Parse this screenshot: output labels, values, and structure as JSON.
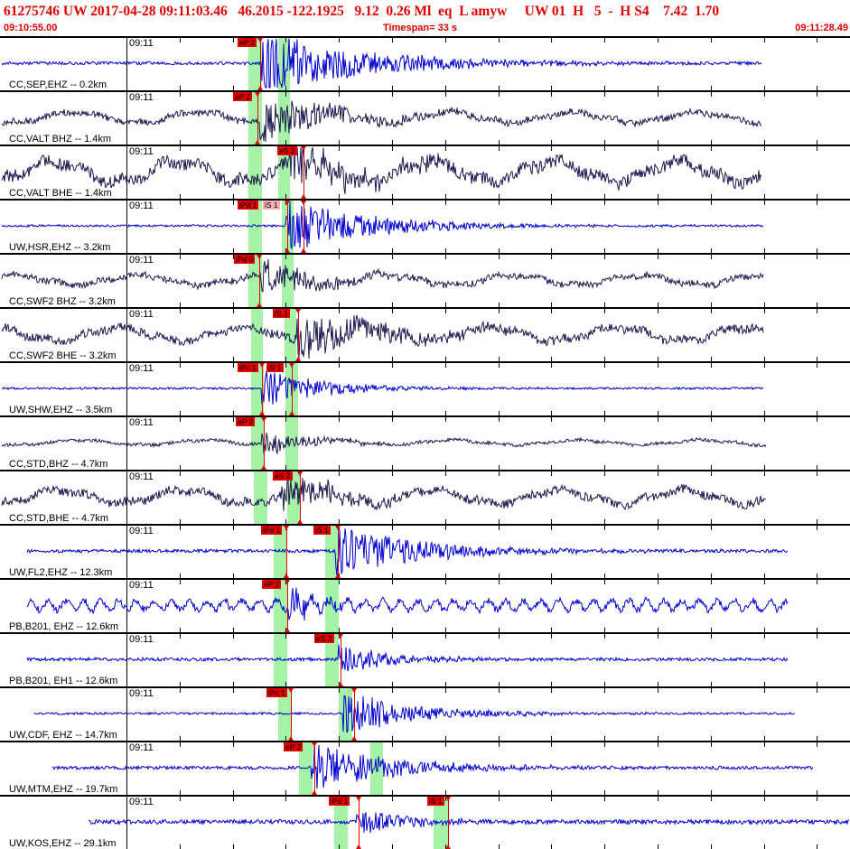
{
  "header": {
    "event_line": "61275746 UW 2017-04-28 09:11:03.46   46.2015 -122.1925   9.12  0.26 Ml  eq  L amyw     UW 01  H   5  -  H S4    7.42  1.70",
    "start_time": "09:10:55.00",
    "timespan": "Timespan=  33 s",
    "end_time": "09:11:28.49"
  },
  "colors": {
    "title_red": "#e00000",
    "trace_blue": "#0000d0",
    "trace_dark": "#1a1a50",
    "phase_green": "#a6f2a6",
    "pick_red": "#e00000"
  },
  "traces": [
    {
      "time_label": "09:11",
      "station": "CC,SEP,EHZ -- 0.2km",
      "color": "blue",
      "picks": [
        {
          "label": "eP 2",
          "style": "dark"
        }
      ]
    },
    {
      "time_label": "09:11",
      "station": "CC,VALT BHZ -- 1.4km",
      "color": "dark",
      "picks": [
        {
          "label": "eP 2",
          "style": "dark"
        }
      ]
    },
    {
      "time_label": "09:11",
      "station": "CC,VALT BHE -- 1.4km",
      "color": "dark",
      "picks": [
        {
          "label": "eS 2",
          "style": "dark"
        }
      ]
    },
    {
      "time_label": "09:11",
      "station": "UW,HSR,EHZ -- 3.2km",
      "color": "blue",
      "picks": [
        {
          "label": "iPd 1",
          "style": "dark"
        },
        {
          "label": "iS 1",
          "style": "light"
        }
      ]
    },
    {
      "time_label": "09:11",
      "station": "CC,SWF2 BHZ -- 3.2km",
      "color": "dark",
      "picks": [
        {
          "label": "iPd 0",
          "style": "dark"
        }
      ]
    },
    {
      "time_label": "09:11",
      "station": "CC,SWF2 BHE -- 3.2km",
      "color": "dark",
      "picks": [
        {
          "label": "iS 1",
          "style": "dark"
        }
      ]
    },
    {
      "time_label": "09:11",
      "station": "UW,SHW,EHZ -- 3.5km",
      "color": "blue",
      "picks": [
        {
          "label": "iPc 1",
          "style": "dark"
        },
        {
          "label": "iS 1",
          "style": "dark"
        }
      ]
    },
    {
      "time_label": "09:11",
      "station": "CC,STD,BHZ -- 4.7km",
      "color": "dark",
      "picks": [
        {
          "label": "eP 2",
          "style": "dark"
        }
      ]
    },
    {
      "time_label": "09:11",
      "station": "CC,STD,BHE -- 4.7km",
      "color": "dark",
      "picks": [
        {
          "label": "eS 2",
          "style": "dark"
        }
      ]
    },
    {
      "time_label": "09:11",
      "station": "UW,FL2,EHZ -- 12.3km",
      "color": "blue",
      "picks": [
        {
          "label": "iPd 1",
          "style": "dark"
        },
        {
          "label": "iS 1",
          "style": "dark"
        }
      ]
    },
    {
      "time_label": "09:11",
      "station": "PB,B201, EHZ -- 12.6km",
      "color": "blue",
      "picks": [
        {
          "label": "eP 2",
          "style": "dark"
        }
      ]
    },
    {
      "time_label": "09:11",
      "station": "PB,B201, EH1 -- 12.6km",
      "color": "blue",
      "picks": [
        {
          "label": "eS 2",
          "style": "dark"
        }
      ]
    },
    {
      "time_label": "09:11",
      "station": "UW,CDF, EHZ -- 14.7km",
      "color": "blue",
      "picks": [
        {
          "label": "iPc 1",
          "style": "dark"
        }
      ]
    },
    {
      "time_label": "09:11",
      "station": "UW,MTM,EHZ -- 19.7km",
      "color": "blue",
      "picks": [
        {
          "label": "eP 2",
          "style": "dark"
        }
      ]
    },
    {
      "time_label": "09:11",
      "station": "UW,KOS,EHZ -- 29.1km",
      "color": "blue",
      "picks": [
        {
          "label": "iPd 1",
          "style": "dark"
        },
        {
          "label": "iS 1",
          "style": "dark"
        }
      ]
    }
  ]
}
